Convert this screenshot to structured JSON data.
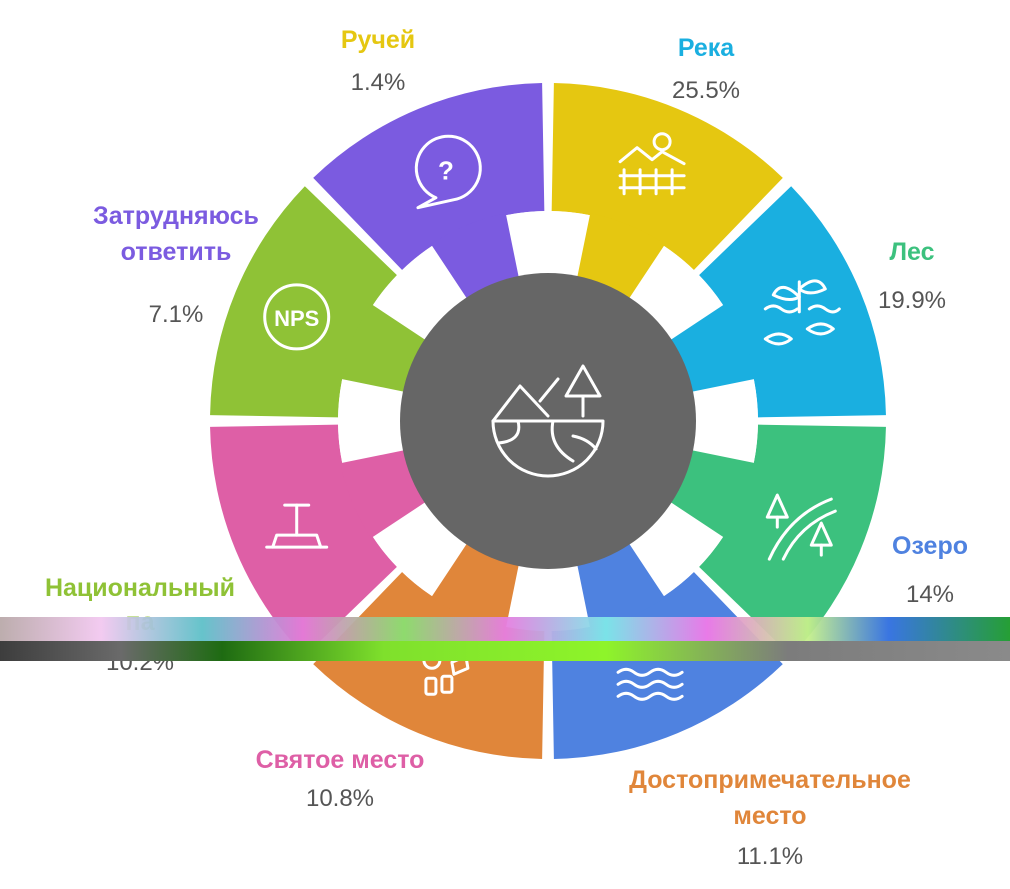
{
  "chart_data": {
    "type": "pie",
    "title": "",
    "categories": [
      "Ручей",
      "Река",
      "Лес",
      "Озеро",
      "Достопримечательное место",
      "Святое место",
      "Национальный парк",
      "Затрудняюсь ответить"
    ],
    "values": [
      1.4,
      25.5,
      19.9,
      14,
      11.1,
      10.8,
      10.2,
      7.1
    ],
    "value_labels": [
      "1.4%",
      "25.5%",
      "19.9%",
      "14%",
      "11.1%",
      "10.8%",
      "10.2%",
      "7.1%"
    ],
    "label_lines": [
      [
        "Ручей"
      ],
      [
        "Река"
      ],
      [
        "Лес"
      ],
      [
        "Озеро"
      ],
      [
        "Достопримечательное",
        "место"
      ],
      [
        "Святое место"
      ],
      [
        "Национальный",
        "па"
      ],
      [
        "Затрудняюсь",
        "ответить"
      ]
    ],
    "colors": [
      "#E5C711",
      "#1AAFE0",
      "#3CC17E",
      "#4F82E0",
      "#E0863A",
      "#DE5FA6",
      "#8FC236",
      "#7B5BE0"
    ],
    "icons": [
      "landscape-fence-icon",
      "plant-fish-icon",
      "forest-road-icon",
      "lake-birds-icon",
      "sights-icon",
      "shrine-icon",
      "nps-badge-icon",
      "question-bubble-icon"
    ],
    "icon_text": {
      "nps": "NPS",
      "question": "?"
    },
    "center": {
      "color": "#666666",
      "icon": "earth-landscape-icon"
    },
    "note": "Segments are displayed as equal 45° sectors; values shown as labels"
  }
}
